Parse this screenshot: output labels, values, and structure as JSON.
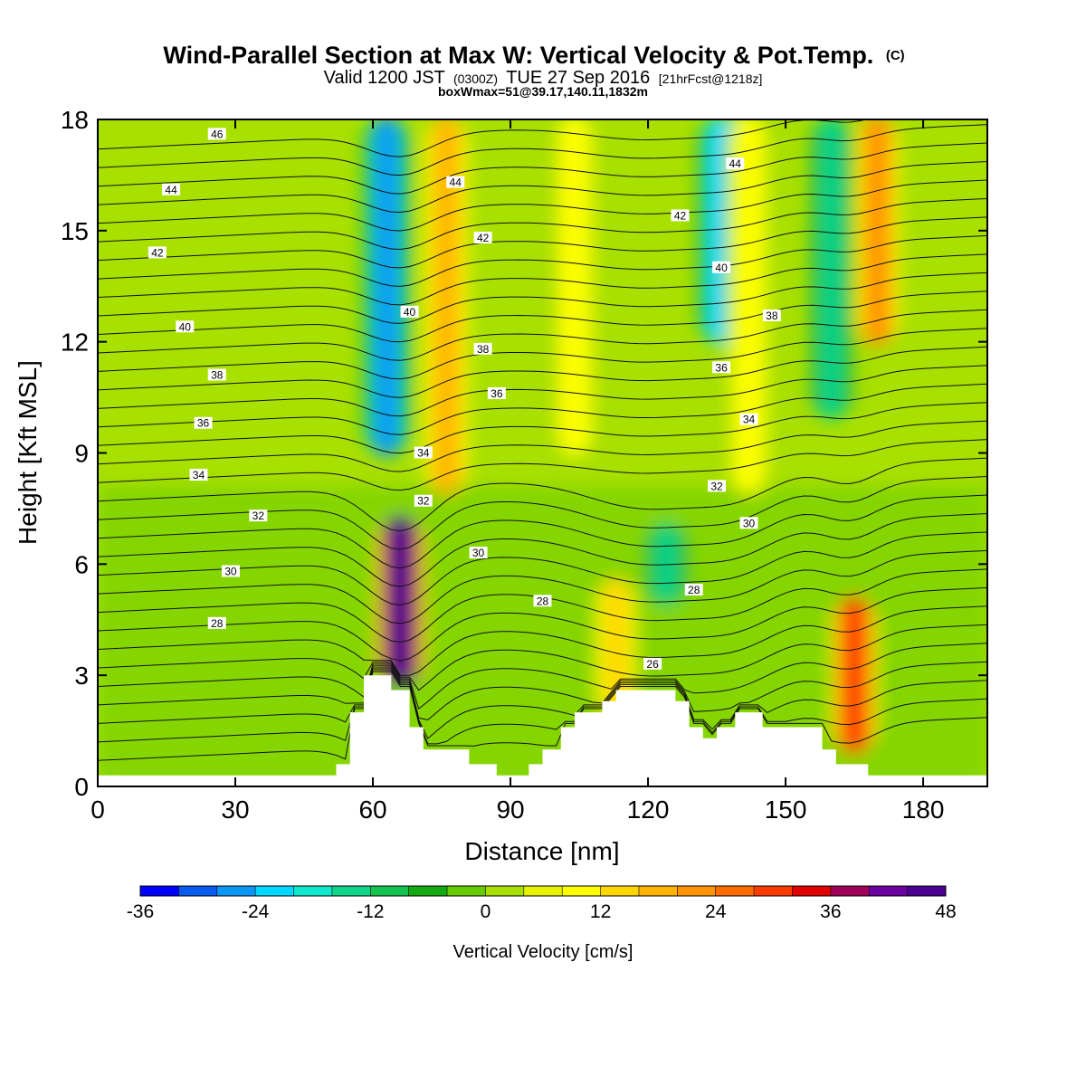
{
  "chart_data": {
    "type": "heatmap",
    "title": "Wind-Parallel Section at Max W: Vertical Velocity & Pot.Temp.",
    "title_mark": "(C)",
    "subtitle": {
      "prefix": "Valid 1200 JST",
      "utc": "(0300Z)",
      "date": "TUE 27 Sep 2016",
      "forecast": "[21hrFcst@1218z]"
    },
    "subtitle2": "boxWmax=51@39.17,140.11,1832m",
    "xlabel": "Distance [nm]",
    "ylabel": "Height [Kft MSL]",
    "xlim": [
      0,
      194
    ],
    "ylim": [
      0,
      18
    ],
    "xticks": [
      0,
      30,
      60,
      90,
      120,
      150,
      180
    ],
    "yticks": [
      0,
      3,
      6,
      9,
      12,
      15,
      18
    ],
    "colorbar": {
      "label": "Vertical Velocity [cm/s]",
      "min": -36,
      "max": 48,
      "step": 4,
      "tick_labels": [
        -36,
        -24,
        -12,
        0,
        12,
        24,
        36,
        48
      ],
      "colors": [
        "#0000ff",
        "#0a5cf0",
        "#0a96f5",
        "#00d7ff",
        "#10e8cc",
        "#11d38a",
        "#13c24f",
        "#14aa14",
        "#66cc00",
        "#a8e000",
        "#e6f200",
        "#ffff00",
        "#ffd700",
        "#ffb400",
        "#ff9200",
        "#ff6b00",
        "#ff3c00",
        "#e00000",
        "#a00058",
        "#6d00a0",
        "#4a0090"
      ]
    },
    "velocity_features": [
      {
        "x": 66,
        "z_min": 2.8,
        "z_max": 7.2,
        "peak_w": 51,
        "kind": "updraft"
      },
      {
        "x": 63,
        "z_min": 9.0,
        "z_max": 18.0,
        "peak_w": -26,
        "kind": "downdraft"
      },
      {
        "x": 76,
        "z_min": 8.0,
        "z_max": 18.0,
        "peak_w": 16,
        "kind": "updraft"
      },
      {
        "x": 113,
        "z_min": 2.0,
        "z_max": 5.5,
        "peak_w": 14,
        "kind": "updraft"
      },
      {
        "x": 104,
        "z_min": 9.0,
        "z_max": 18.0,
        "peak_w": 8,
        "kind": "updraft"
      },
      {
        "x": 124,
        "z_min": 5.0,
        "z_max": 7.0,
        "peak_w": -14,
        "kind": "downdraft"
      },
      {
        "x": 136,
        "z_min": 12.0,
        "z_max": 18.0,
        "peak_w": -24,
        "kind": "downdraft"
      },
      {
        "x": 142,
        "z_min": 8.0,
        "z_max": 18.0,
        "peak_w": 10,
        "kind": "updraft"
      },
      {
        "x": 160,
        "z_min": 10.0,
        "z_max": 18.0,
        "peak_w": -16,
        "kind": "downdraft"
      },
      {
        "x": 165,
        "z_min": 1.0,
        "z_max": 5.0,
        "peak_w": 28,
        "kind": "updraft"
      },
      {
        "x": 170,
        "z_min": 12.0,
        "z_max": 18.0,
        "peak_w": 22,
        "kind": "updraft"
      }
    ],
    "terrain": [
      {
        "x": 0,
        "z": 0.3
      },
      {
        "x": 52,
        "z": 0.3
      },
      {
        "x": 52,
        "z": 0.6
      },
      {
        "x": 55,
        "z": 0.6
      },
      {
        "x": 55,
        "z": 2.0
      },
      {
        "x": 58,
        "z": 2.0
      },
      {
        "x": 58,
        "z": 3.0
      },
      {
        "x": 64,
        "z": 3.0
      },
      {
        "x": 64,
        "z": 2.6
      },
      {
        "x": 68,
        "z": 2.6
      },
      {
        "x": 68,
        "z": 1.6
      },
      {
        "x": 71,
        "z": 1.6
      },
      {
        "x": 71,
        "z": 1.0
      },
      {
        "x": 81,
        "z": 1.0
      },
      {
        "x": 81,
        "z": 0.6
      },
      {
        "x": 87,
        "z": 0.6
      },
      {
        "x": 87,
        "z": 0.3
      },
      {
        "x": 94,
        "z": 0.3
      },
      {
        "x": 94,
        "z": 0.6
      },
      {
        "x": 97,
        "z": 0.6
      },
      {
        "x": 97,
        "z": 1.0
      },
      {
        "x": 101,
        "z": 1.0
      },
      {
        "x": 101,
        "z": 1.6
      },
      {
        "x": 104,
        "z": 1.6
      },
      {
        "x": 104,
        "z": 2.0
      },
      {
        "x": 110,
        "z": 2.0
      },
      {
        "x": 110,
        "z": 2.3
      },
      {
        "x": 113,
        "z": 2.3
      },
      {
        "x": 113,
        "z": 2.6
      },
      {
        "x": 126,
        "z": 2.6
      },
      {
        "x": 126,
        "z": 2.3
      },
      {
        "x": 129,
        "z": 2.3
      },
      {
        "x": 129,
        "z": 1.6
      },
      {
        "x": 132,
        "z": 1.6
      },
      {
        "x": 132,
        "z": 1.3
      },
      {
        "x": 135,
        "z": 1.3
      },
      {
        "x": 135,
        "z": 1.6
      },
      {
        "x": 139,
        "z": 1.6
      },
      {
        "x": 139,
        "z": 2.0
      },
      {
        "x": 145,
        "z": 2.0
      },
      {
        "x": 145,
        "z": 1.6
      },
      {
        "x": 158,
        "z": 1.6
      },
      {
        "x": 158,
        "z": 1.0
      },
      {
        "x": 161,
        "z": 1.0
      },
      {
        "x": 161,
        "z": 0.6
      },
      {
        "x": 168,
        "z": 0.6
      },
      {
        "x": 168,
        "z": 0.3
      },
      {
        "x": 194,
        "z": 0.3
      }
    ],
    "isentrope_labels": [
      {
        "text": "46",
        "x": 26,
        "z": 17.6
      },
      {
        "text": "44",
        "x": 16,
        "z": 16.1
      },
      {
        "text": "42",
        "x": 13,
        "z": 14.4
      },
      {
        "text": "40",
        "x": 19,
        "z": 12.4
      },
      {
        "text": "38",
        "x": 26,
        "z": 11.1
      },
      {
        "text": "36",
        "x": 23,
        "z": 9.8
      },
      {
        "text": "34",
        "x": 22,
        "z": 8.4
      },
      {
        "text": "32",
        "x": 35,
        "z": 7.3
      },
      {
        "text": "30",
        "x": 29,
        "z": 5.8
      },
      {
        "text": "28",
        "x": 26,
        "z": 4.4
      },
      {
        "text": "44",
        "x": 78,
        "z": 16.3
      },
      {
        "text": "42",
        "x": 84,
        "z": 14.8
      },
      {
        "text": "40",
        "x": 68,
        "z": 12.8
      },
      {
        "text": "38",
        "x": 84,
        "z": 11.8
      },
      {
        "text": "36",
        "x": 87,
        "z": 10.6
      },
      {
        "text": "34",
        "x": 71,
        "z": 9.0
      },
      {
        "text": "32",
        "x": 71,
        "z": 7.7
      },
      {
        "text": "30",
        "x": 83,
        "z": 6.3
      },
      {
        "text": "28",
        "x": 97,
        "z": 5.0
      },
      {
        "text": "26",
        "x": 121,
        "z": 3.3
      },
      {
        "text": "28",
        "x": 130,
        "z": 5.3
      },
      {
        "text": "44",
        "x": 139,
        "z": 16.8
      },
      {
        "text": "42",
        "x": 127,
        "z": 15.4
      },
      {
        "text": "40",
        "x": 136,
        "z": 14.0
      },
      {
        "text": "38",
        "x": 147,
        "z": 12.7
      },
      {
        "text": "36",
        "x": 136,
        "z": 11.3
      },
      {
        "text": "34",
        "x": 142,
        "z": 9.9
      },
      {
        "text": "32",
        "x": 135,
        "z": 8.1
      },
      {
        "text": "30",
        "x": 142,
        "z": 7.1
      }
    ],
    "grid": false
  }
}
